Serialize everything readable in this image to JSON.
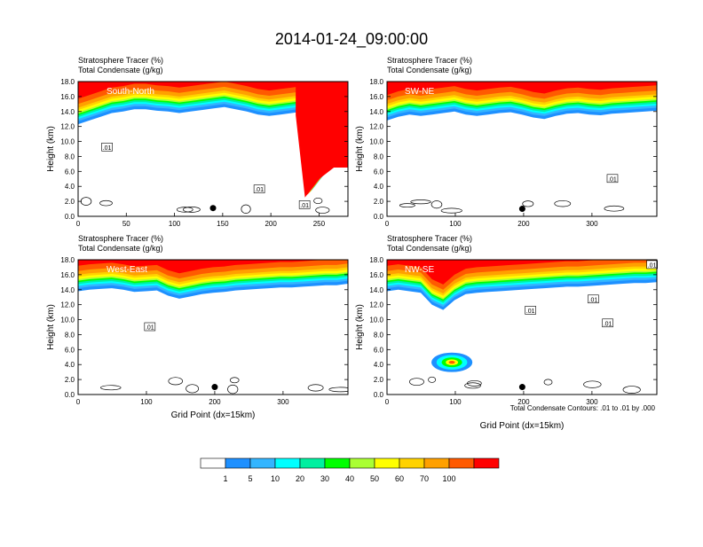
{
  "title": "2014-01-24_09:00:00",
  "footnote": "Total Condensate Contours: .01 to .01 by .000",
  "colors": {
    "bins": [
      "#ffffff",
      "#1e90ff",
      "#33b5ff",
      "#00ffff",
      "#00f0a0",
      "#00ff00",
      "#aaff33",
      "#ffff00",
      "#ffd200",
      "#ffa000",
      "#ff5a00",
      "#ff0000"
    ],
    "contour": "#000000",
    "frame": "#000000"
  },
  "colorbar": {
    "labels": [
      "1",
      "5",
      "10",
      "20",
      "30",
      "40",
      "50",
      "60",
      "70",
      "100"
    ]
  },
  "chart_data": [
    {
      "type": "heatmap",
      "name": "South-North",
      "label_left_1": "Stratosphere Tracer   (%)",
      "label_left_2": "Total Condensate   (g/kg)",
      "ylabel": "Height (km)",
      "xlabel": "",
      "xlim": [
        0,
        280
      ],
      "ylim": [
        0,
        18
      ],
      "xticks": [
        "0",
        "50",
        "100",
        "150",
        "200",
        "250"
      ],
      "yticks": [
        "0.0",
        "2.0",
        "4.0",
        "6.0",
        "8.0",
        "10.0",
        "12.0",
        "14.0",
        "16.0",
        "18.0"
      ],
      "tropopause_km": [
        13.5,
        14.0,
        14.5,
        15.0,
        15.2,
        15.5,
        15.5,
        15.3,
        15.2,
        15.0,
        15.2,
        15.4,
        15.6,
        15.8,
        15.5,
        15.2,
        14.8,
        14.6,
        14.8,
        15.0,
        15.2,
        15.5,
        15.8,
        16.0,
        16.1
      ],
      "intrusion": [
        {
          "x": 245,
          "ybottom": 3.0
        },
        {
          "x": 260,
          "ybottom": 5.5
        },
        {
          "x": 275,
          "ybottom": 7.0
        }
      ],
      "cond_labels": [
        {
          "text": ".01",
          "x": 30,
          "y": 9.2
        },
        {
          "text": ".01",
          "x": 188,
          "y": 3.6
        },
        {
          "text": ".01",
          "x": 235,
          "y": 1.5
        }
      ],
      "marker": {
        "x": 140,
        "y": 1.1
      }
    },
    {
      "type": "heatmap",
      "name": "SW-NE",
      "label_left_1": "Stratosphere Tracer   (%)",
      "label_left_2": "Total Condensate   (g/kg)",
      "ylabel": "Height (km)",
      "xlabel": "",
      "xlim": [
        0,
        395
      ],
      "ylim": [
        0,
        18
      ],
      "xticks": [
        "0",
        "100",
        "200",
        "300"
      ],
      "yticks": [
        "0.0",
        "2.0",
        "4.0",
        "6.0",
        "8.0",
        "10.0",
        "12.0",
        "14.0",
        "16.0",
        "18.0"
      ],
      "tropopause_km": [
        14.0,
        14.5,
        14.8,
        14.6,
        14.8,
        15.0,
        15.2,
        14.8,
        14.6,
        14.8,
        15.0,
        15.1,
        14.8,
        14.4,
        14.2,
        14.6,
        14.9,
        15.0,
        14.8,
        14.7,
        14.9,
        15.0,
        15.1,
        15.2,
        15.3
      ],
      "intrusion": [],
      "cond_labels": [
        {
          "text": ".01",
          "x": 330,
          "y": 5.0
        }
      ],
      "marker": {
        "x": 198,
        "y": 1.0
      }
    },
    {
      "type": "heatmap",
      "name": "West-East",
      "label_left_1": "Stratosphere Tracer   (%)",
      "label_left_2": "Total Condensate   (g/kg)",
      "ylabel": "Height (km)",
      "xlabel": "Grid Point (dx=15km)",
      "xlim": [
        0,
        395
      ],
      "ylim": [
        0,
        18
      ],
      "xticks": [
        "0",
        "100",
        "200",
        "300"
      ],
      "yticks": [
        "0.0",
        "2.0",
        "4.0",
        "6.0",
        "8.0",
        "10.0",
        "12.0",
        "14.0",
        "16.0",
        "18.0"
      ],
      "tropopause_km": [
        15.0,
        15.2,
        15.3,
        15.4,
        15.2,
        14.9,
        15.0,
        15.1,
        14.4,
        14.0,
        14.3,
        14.6,
        14.8,
        14.9,
        15.1,
        15.2,
        15.3,
        15.4,
        15.5,
        15.5,
        15.6,
        15.7,
        15.8,
        15.8,
        16.0
      ],
      "intrusion": [],
      "cond_labels": [
        {
          "text": ".01",
          "x": 105,
          "y": 9.0
        }
      ],
      "marker": {
        "x": 200,
        "y": 1.0
      }
    },
    {
      "type": "heatmap",
      "name": "NW-SE",
      "label_left_1": "Stratosphere Tracer   (%)",
      "label_left_2": "Total Condensate   (g/kg)",
      "ylabel": "Height (km)",
      "xlabel": "Grid Point (dx=15km)",
      "xlim": [
        0,
        395
      ],
      "ylim": [
        0,
        18
      ],
      "xticks": [
        "0",
        "100",
        "200",
        "300"
      ],
      "yticks": [
        "0.0",
        "2.0",
        "4.0",
        "6.0",
        "8.0",
        "10.0",
        "12.0",
        "14.0",
        "16.0",
        "18.0"
      ],
      "tropopause_km": [
        15.0,
        15.2,
        15.0,
        14.8,
        13.2,
        12.5,
        13.8,
        14.6,
        14.8,
        14.9,
        15.0,
        15.1,
        15.2,
        15.3,
        15.4,
        15.5,
        15.6,
        15.6,
        15.7,
        15.8,
        15.9,
        16.0,
        16.1,
        16.1,
        16.2
      ],
      "intrusion": [],
      "blob": {
        "x": [
          65,
          125
        ],
        "y": [
          3.0,
          5.6
        ]
      },
      "cond_labels": [
        {
          "text": ".01",
          "x": 210,
          "y": 11.2
        },
        {
          "text": ".01",
          "x": 302,
          "y": 12.7
        },
        {
          "text": ".01",
          "x": 323,
          "y": 9.5
        },
        {
          "text": ".01",
          "x": 388,
          "y": 17.3
        }
      ],
      "marker": {
        "x": 198,
        "y": 1.0
      }
    }
  ]
}
